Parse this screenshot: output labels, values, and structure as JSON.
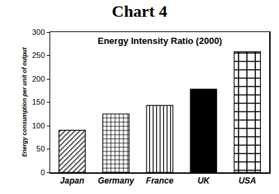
{
  "chart_data": {
    "type": "bar",
    "title": "Chart 4",
    "subtitle": "Energy Intensity Ratio (2000)",
    "y_label": "Energy consumption per unit of output",
    "categories": [
      "Japan",
      "Germany",
      "France",
      "UK",
      "USA"
    ],
    "values": [
      90,
      125,
      143,
      178,
      258
    ],
    "color": "#000000",
    "ylim": [
      0,
      300
    ],
    "yticks": [
      0,
      50,
      100,
      150,
      200,
      250,
      300
    ],
    "grid": false
  }
}
